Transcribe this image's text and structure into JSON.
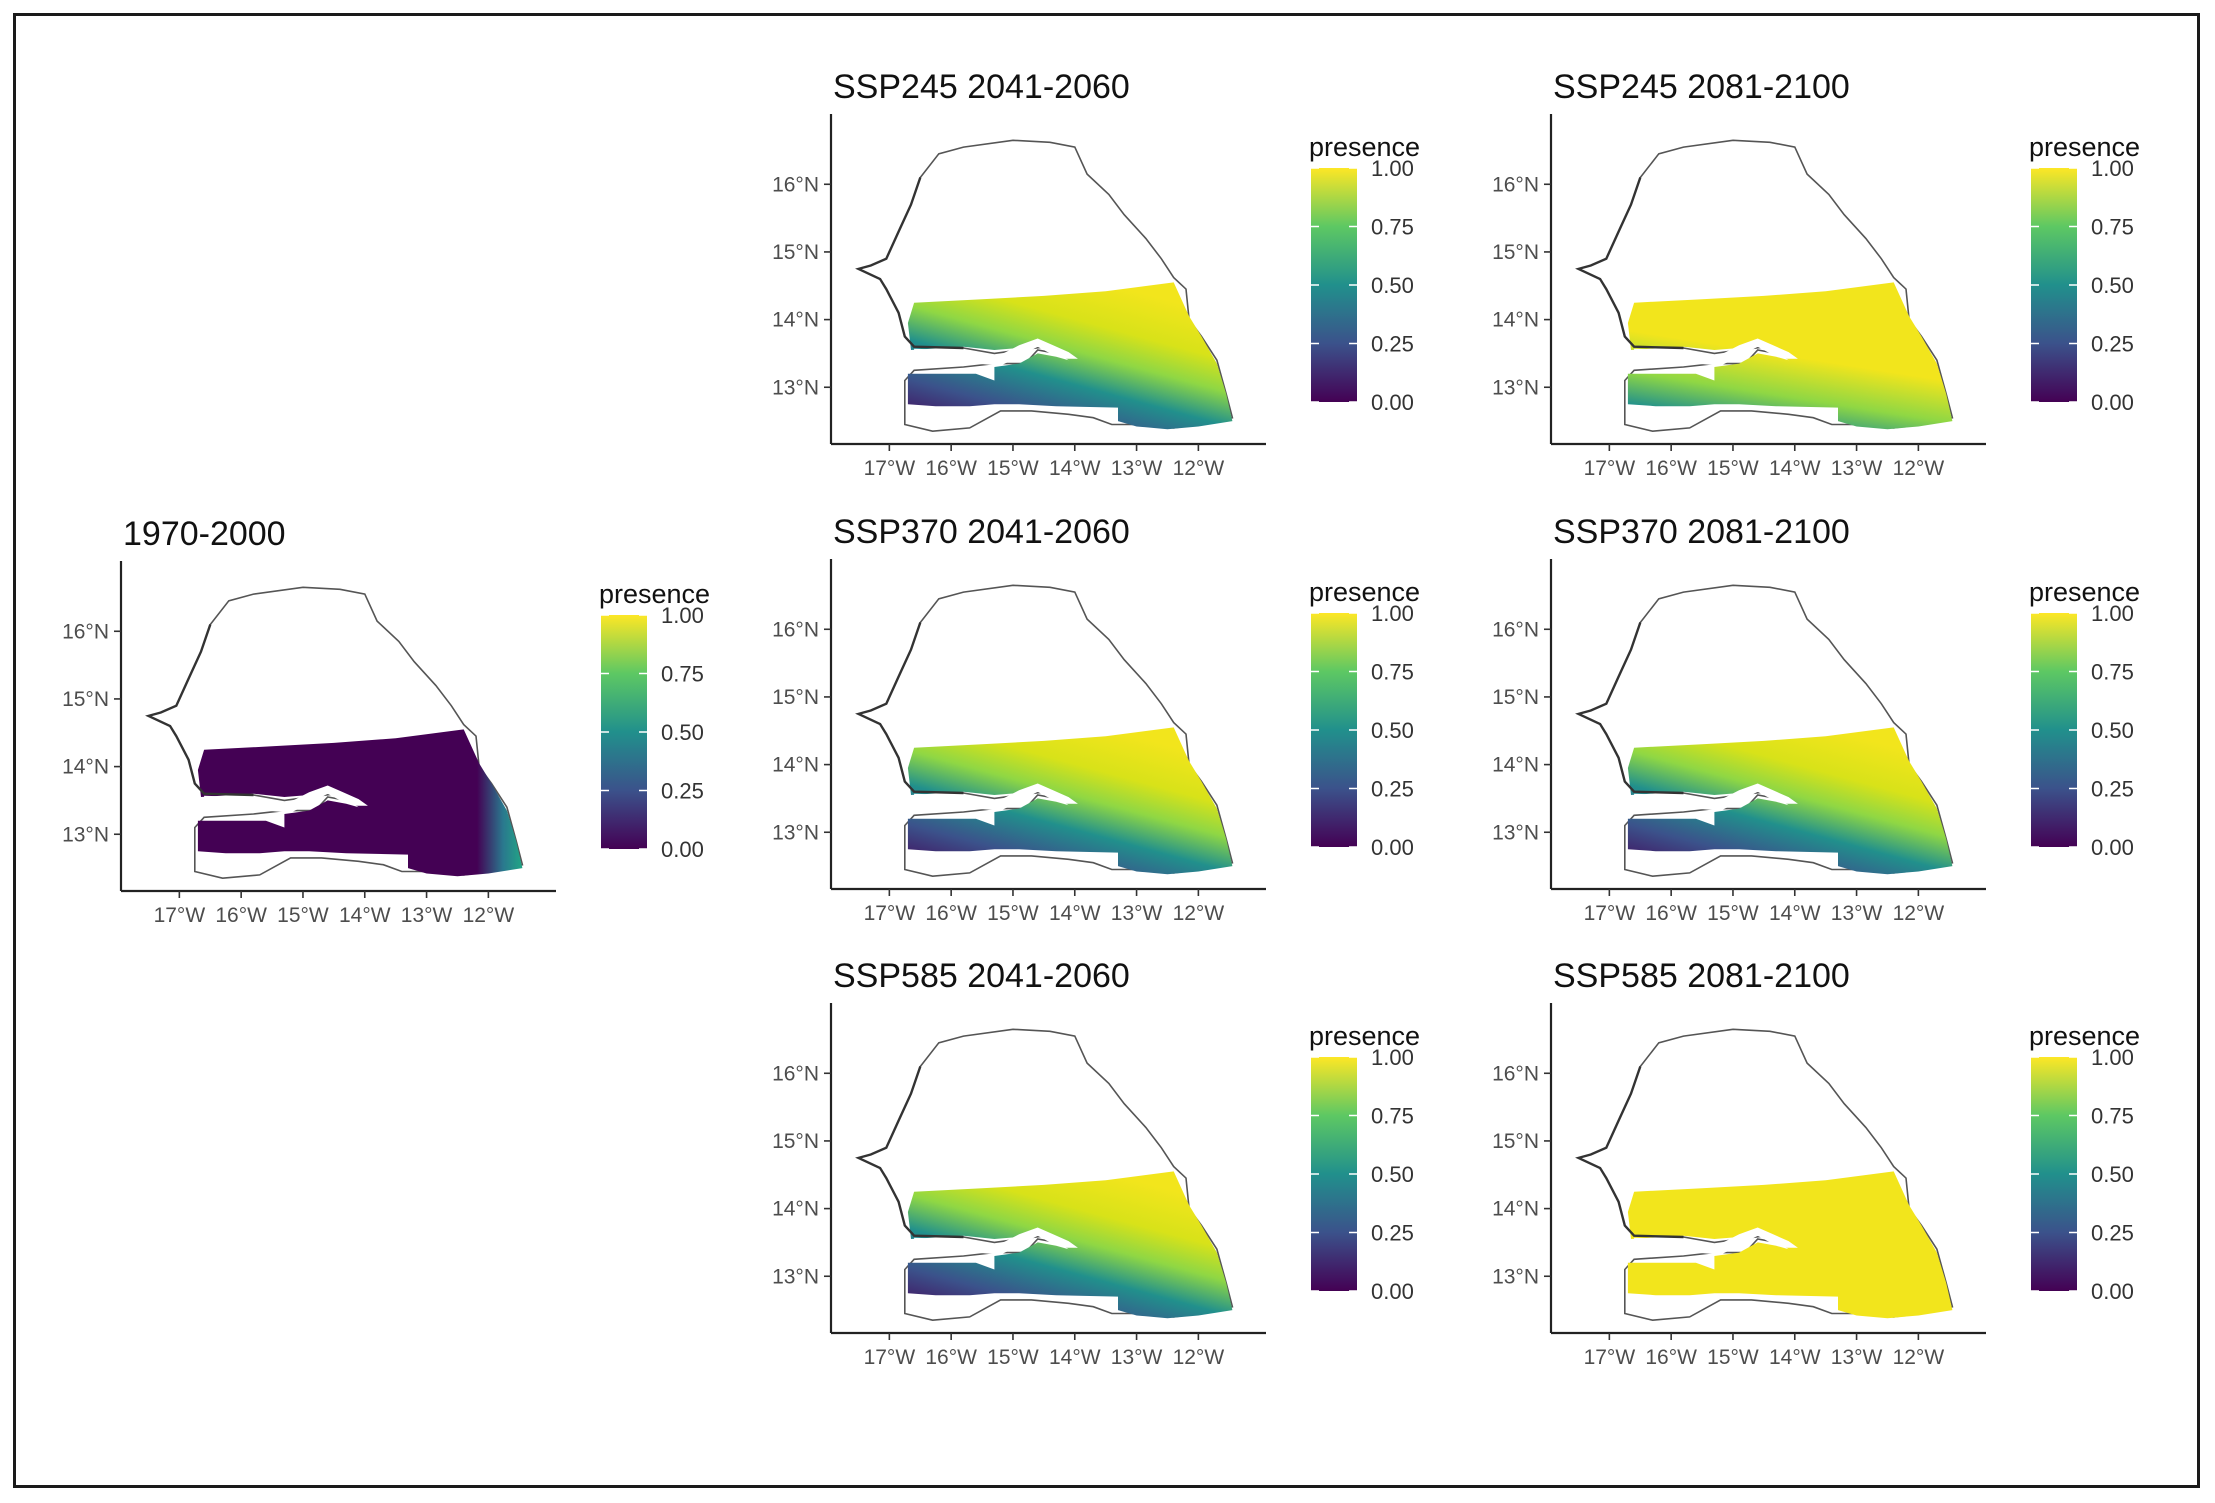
{
  "figure": {
    "panels": [
      {
        "id": "p1970",
        "title": "1970-2000",
        "pattern": "baseline"
      },
      {
        "id": "p245_2041",
        "title": "SSP245 2041-2060",
        "pattern": "mid"
      },
      {
        "id": "p245_2081",
        "title": "SSP245 2081-2100",
        "pattern": "high"
      },
      {
        "id": "p370_2041",
        "title": "SSP370 2041-2060",
        "pattern": "mid"
      },
      {
        "id": "p370_2081",
        "title": "SSP370 2081-2100",
        "pattern": "mid"
      },
      {
        "id": "p585_2041",
        "title": "SSP585 2041-2060",
        "pattern": "mid"
      },
      {
        "id": "p585_2081",
        "title": "SSP585 2081-2100",
        "pattern": "full"
      }
    ],
    "x_ticks": [
      "17°W",
      "16°W",
      "15°W",
      "14°W",
      "13°W",
      "12°W"
    ],
    "y_ticks": [
      "16°N",
      "15°N",
      "14°N",
      "13°N"
    ],
    "x_tick_values": [
      -17,
      -16,
      -15,
      -14,
      -13,
      -12
    ],
    "y_tick_values": [
      16,
      15,
      14,
      13
    ],
    "legend": {
      "title": "presence",
      "ticks": [
        "1.00",
        "0.75",
        "0.50",
        "0.25",
        "0.00"
      ],
      "tick_values": [
        1.0,
        0.75,
        0.5,
        0.25,
        0.0
      ],
      "colors": [
        "#440154",
        "#3b528b",
        "#21908c",
        "#5dc863",
        "#fde725"
      ]
    },
    "colors": {
      "low": "#440154",
      "midlow": "#3b528b",
      "mid": "#21908c",
      "midhigh": "#5dc863",
      "high": "#f2e51c",
      "axis": "#222222",
      "border": "#1a1a1a"
    }
  }
}
